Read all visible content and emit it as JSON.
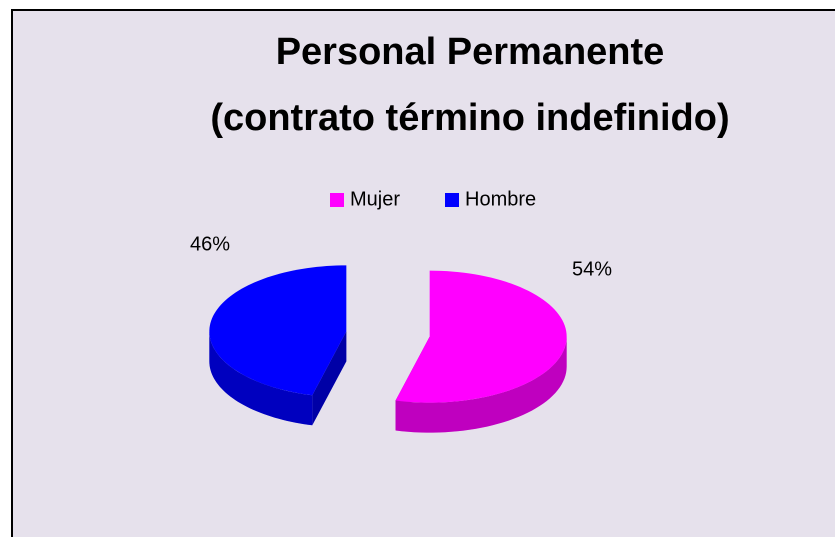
{
  "chart_data": {
    "type": "pie3d",
    "title": [
      "Personal Permanente",
      "(contrato término indefinido)"
    ],
    "categories": [
      "Mujer",
      "Hombre"
    ],
    "values": [
      54,
      46
    ],
    "value_labels": [
      "54%",
      "46%"
    ],
    "colors": [
      "#ff00ff",
      "#0000ff"
    ],
    "legend": "top"
  }
}
